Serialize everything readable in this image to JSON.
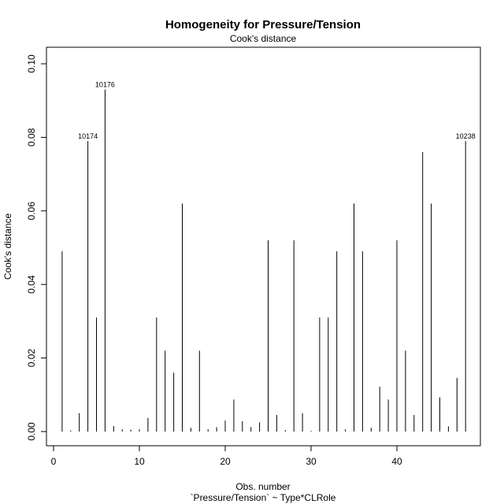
{
  "chart_data": {
    "type": "bar",
    "title": "Homogeneity for Pressure/Tension",
    "subtitle": "Cook's distance",
    "xlabel": "Obs. number",
    "xlabel2": "`Pressure/Tension` ~ Type*CLRole",
    "ylabel": "Cook's distance",
    "xlim": [
      0,
      49
    ],
    "ylim": [
      0,
      0.1
    ],
    "x_ticks": [
      0,
      10,
      20,
      30,
      40
    ],
    "y_ticks": [
      0.0,
      0.02,
      0.04,
      0.06,
      0.08,
      0.1
    ],
    "y_tick_labels": [
      "0.00",
      "0.02",
      "0.04",
      "0.06",
      "0.08",
      "0.10"
    ],
    "x": [
      1,
      2,
      3,
      4,
      5,
      6,
      7,
      8,
      9,
      10,
      11,
      12,
      13,
      14,
      15,
      16,
      17,
      18,
      19,
      20,
      21,
      22,
      23,
      24,
      25,
      26,
      27,
      28,
      29,
      30,
      31,
      32,
      33,
      34,
      35,
      36,
      37,
      38,
      39,
      40,
      41,
      42,
      43,
      44,
      45,
      46,
      47,
      48
    ],
    "values": [
      0.049,
      0.0003,
      0.005,
      0.079,
      0.031,
      0.093,
      0.0015,
      0.0006,
      0.0005,
      0.0006,
      0.0037,
      0.031,
      0.022,
      0.016,
      0.062,
      0.001,
      0.022,
      0.0006,
      0.0012,
      0.003,
      0.0087,
      0.0028,
      0.0012,
      0.0025,
      0.052,
      0.0045,
      0.0004,
      0.052,
      0.005,
      0.0002,
      0.031,
      0.031,
      0.049,
      0.0006,
      0.062,
      0.049,
      0.001,
      0.0122,
      0.0087,
      0.052,
      0.022,
      0.0045,
      0.076,
      0.062,
      0.0093,
      0.0014,
      0.0146,
      0.079
    ],
    "annotations": [
      {
        "x": 4,
        "label": "10174"
      },
      {
        "x": 6,
        "label": "10176"
      },
      {
        "x": 48,
        "label": "10238"
      }
    ],
    "grid": false,
    "legend": "none"
  }
}
